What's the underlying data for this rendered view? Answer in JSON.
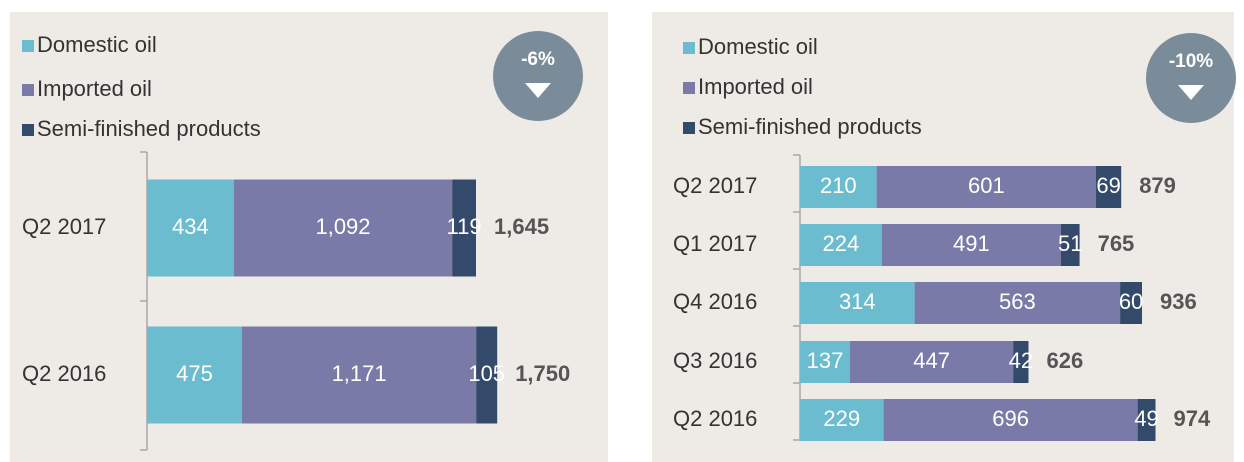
{
  "chart_data": [
    {
      "type": "stacked-bar",
      "annotation": "-6%",
      "categories": [
        "Q2 2017",
        "Q2 2016"
      ],
      "series": [
        {
          "name": "Domestic oil",
          "color": "#6bbccf",
          "values": [
            434,
            475
          ]
        },
        {
          "name": "Imported oil",
          "color": "#7a7aa8",
          "values": [
            1092,
            1171
          ],
          "value_labels": [
            "1,092",
            "1,171"
          ]
        },
        {
          "name": "Semi-finished products",
          "color": "#344a6a",
          "values": [
            119,
            105
          ]
        }
      ],
      "totals": [
        1645,
        1750
      ],
      "total_labels": [
        "1,645",
        "1,750"
      ]
    },
    {
      "type": "stacked-bar",
      "annotation": "-10%",
      "categories": [
        "Q2 2017",
        "Q1 2017",
        "Q4 2016",
        "Q3 2016",
        "Q2 2016"
      ],
      "series": [
        {
          "name": "Domestic oil",
          "color": "#6bbccf",
          "values": [
            210,
            224,
            314,
            137,
            229
          ]
        },
        {
          "name": "Imported oil",
          "color": "#7a7aa8",
          "values": [
            601,
            491,
            563,
            447,
            696
          ]
        },
        {
          "name": "Semi-finished products",
          "color": "#344a6a",
          "values": [
            69,
            51,
            60,
            42,
            49
          ]
        }
      ],
      "totals": [
        879,
        765,
        936,
        626,
        974
      ]
    }
  ]
}
